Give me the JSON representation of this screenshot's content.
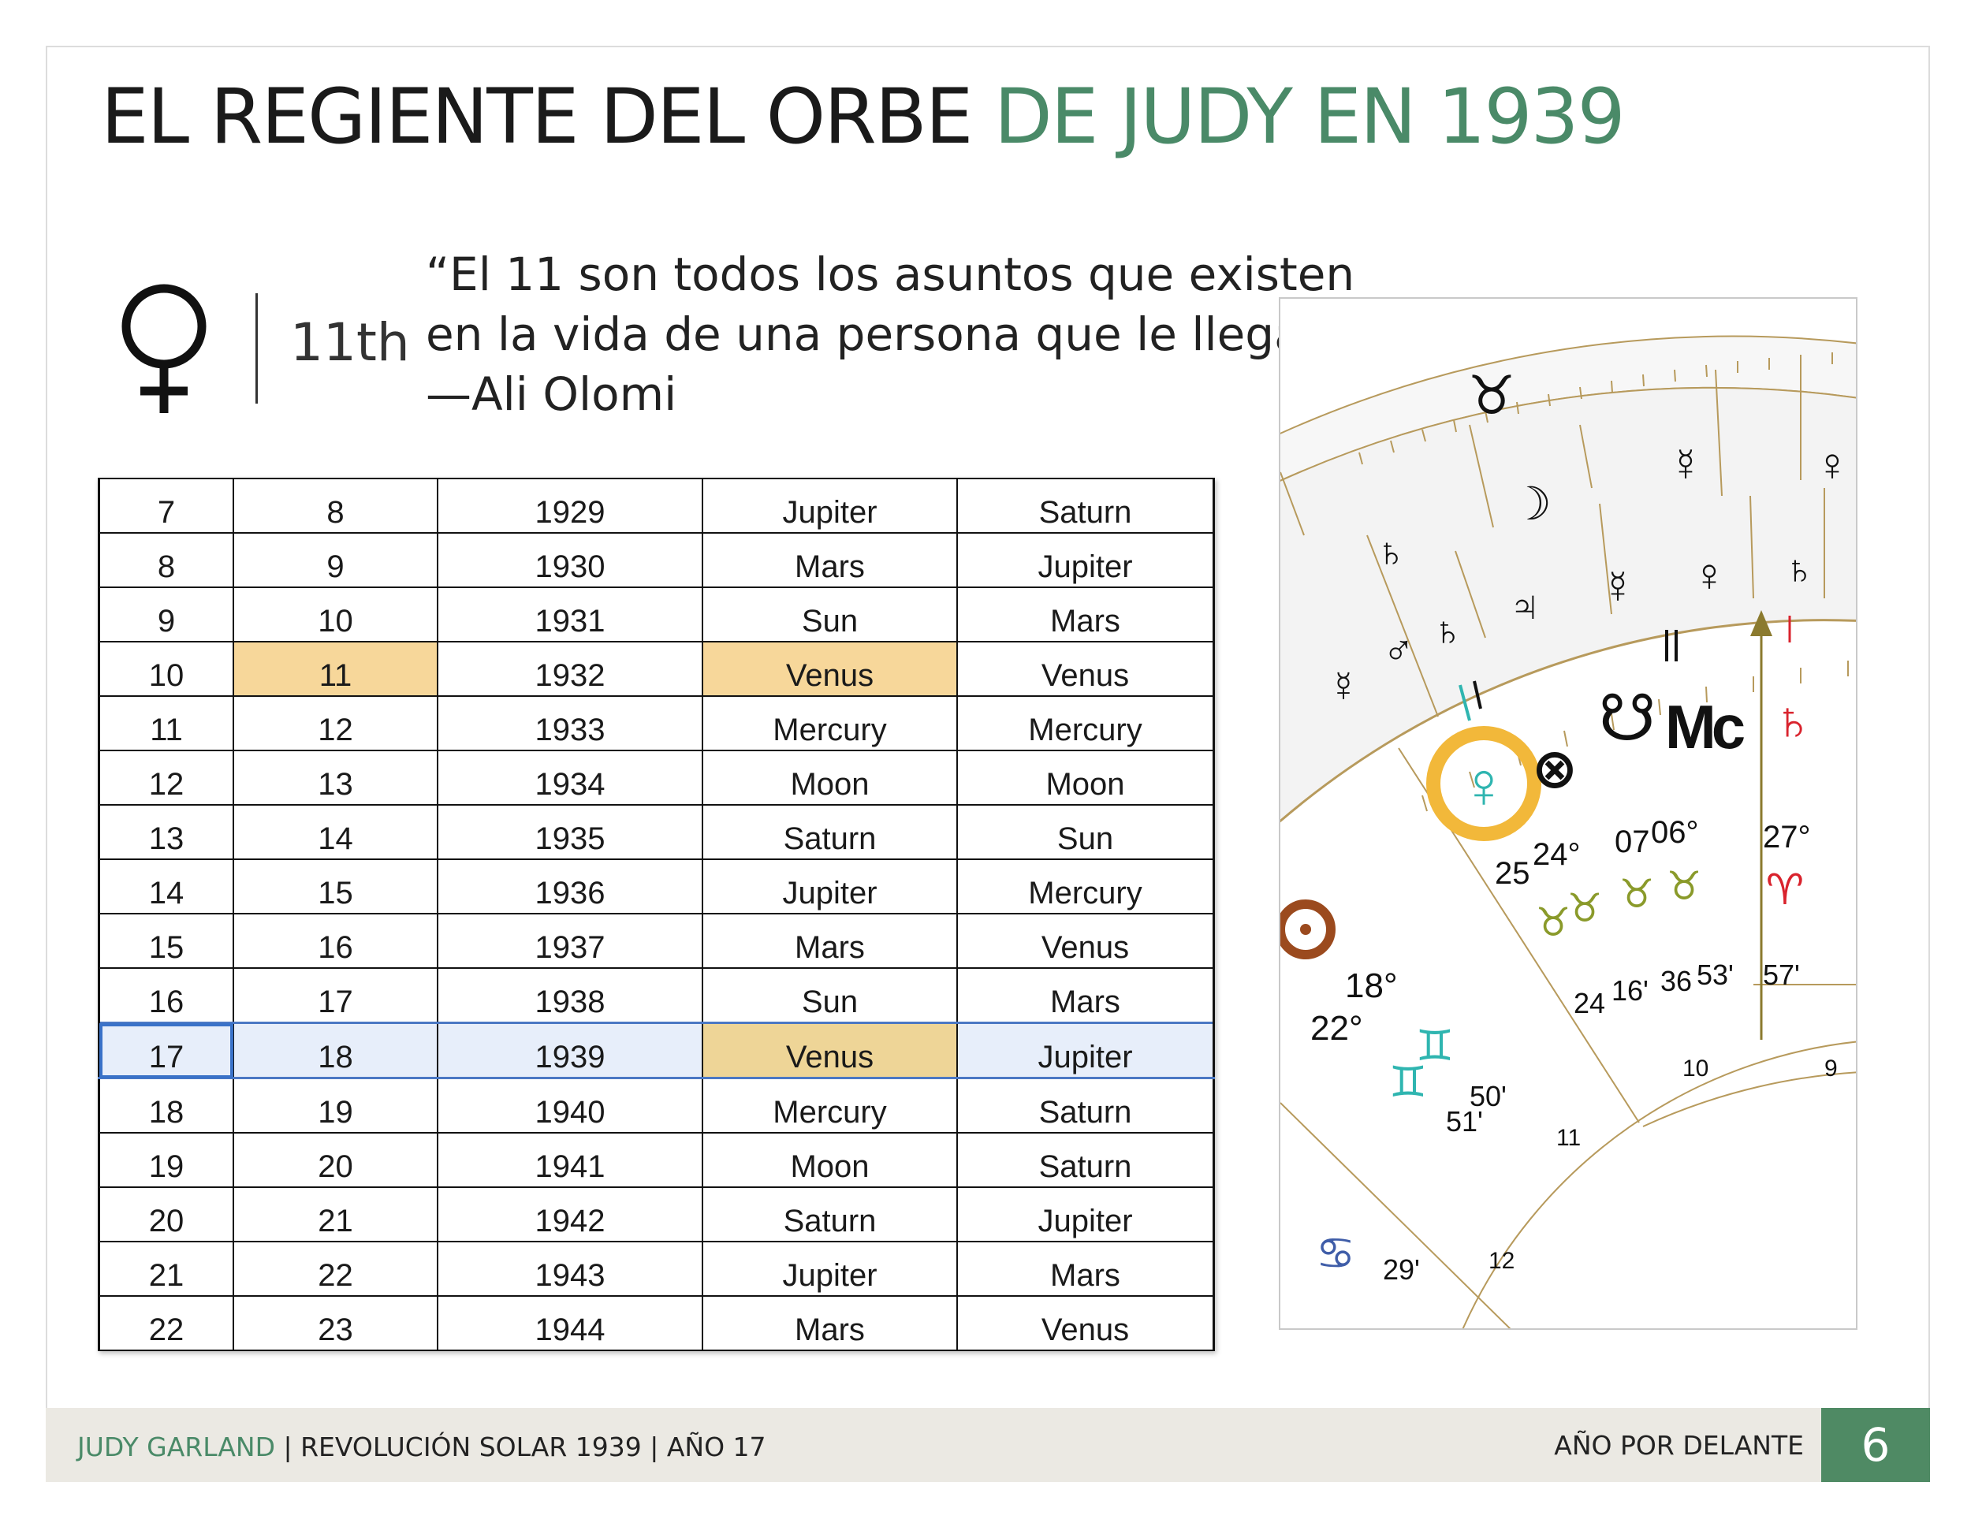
{
  "title": {
    "part1": "EL REGIENTE DEL ORBE",
    "part2": "DE JUDY EN 1939"
  },
  "planet": {
    "icon": "venus-icon",
    "house": "11th"
  },
  "quote": {
    "line1": "“El 11 son todos los asuntos que existen",
    "line2": " en la vida de una persona que le llegan”.",
    "line3": "—Ali Olomi"
  },
  "table": {
    "rows": [
      [
        "7",
        "8",
        "1929",
        "Jupiter",
        "Saturn"
      ],
      [
        "8",
        "9",
        "1930",
        "Mars",
        "Jupiter"
      ],
      [
        "9",
        "10",
        "1931",
        "Sun",
        "Mars"
      ],
      [
        "10",
        "11",
        "1932",
        "Venus",
        "Venus"
      ],
      [
        "11",
        "12",
        "1933",
        "Mercury",
        "Mercury"
      ],
      [
        "12",
        "13",
        "1934",
        "Moon",
        "Moon"
      ],
      [
        "13",
        "14",
        "1935",
        "Saturn",
        "Sun"
      ],
      [
        "14",
        "15",
        "1936",
        "Jupiter",
        "Mercury"
      ],
      [
        "15",
        "16",
        "1937",
        "Mars",
        "Venus"
      ],
      [
        "16",
        "17",
        "1938",
        "Sun",
        "Mars"
      ],
      [
        "17",
        "18",
        "1939",
        "Venus",
        "Jupiter"
      ],
      [
        "18",
        "19",
        "1940",
        "Mercury",
        "Saturn"
      ],
      [
        "19",
        "20",
        "1941",
        "Moon",
        "Saturn"
      ],
      [
        "20",
        "21",
        "1942",
        "Saturn",
        "Jupiter"
      ],
      [
        "21",
        "22",
        "1943",
        "Jupiter",
        "Mars"
      ],
      [
        "22",
        "23",
        "1944",
        "Mars",
        "Venus"
      ]
    ],
    "highlight_color": "#f7d79a",
    "selection_color": "#3a72c8"
  },
  "chart": {
    "degrees": {
      "d18": "18°",
      "d22": "22°",
      "d25": "25",
      "d24": "24°",
      "d07": "07",
      "d06": "06°",
      "d27": "27°"
    },
    "minutes": {
      "m24": "24",
      "m16": "16'",
      "m36": "36",
      "m53": "53'",
      "m57": "57'",
      "m50": "50'",
      "m51": "51'",
      "m29": "29'"
    },
    "houses": {
      "h9": "9",
      "h10": "10",
      "h11": "11",
      "h12": "12"
    },
    "mc_label": "Mc"
  },
  "footer": {
    "name": "JUDY GARLAND",
    "rest": " | REVOLUCIÓN SOLAR 1939 | AÑO 17",
    "section": "AÑO POR DELANTE",
    "page": "6"
  },
  "colors": {
    "green": "#4a8a68",
    "gold": "#f2b83a",
    "teal": "#2fb5b0",
    "red": "#d9232d",
    "olive": "#8a9a2a",
    "brown": "#9b4a1e"
  }
}
